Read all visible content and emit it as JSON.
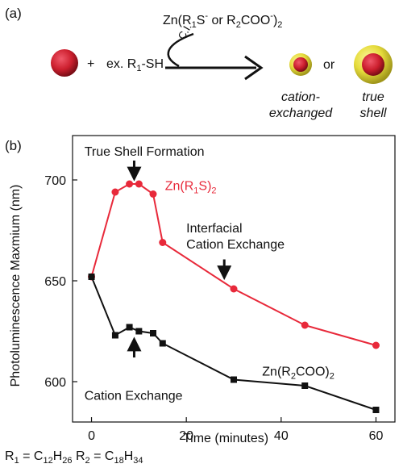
{
  "panel_a": {
    "label": "(a)",
    "plus": "+",
    "thiol": {
      "main": "ex. R",
      "sub": "1",
      "tail": "-SH"
    },
    "reagent": {
      "pre": "Zn(R",
      "sub1": "1",
      "s": "S",
      "sup": "-",
      "or": " or R",
      "sub2": "2",
      "coo": "COO",
      "sup2": "-",
      "close": ")",
      "sub3": "2"
    },
    "ci_label": "C.I.",
    "or_label": "or",
    "product1_label_line1": "cation-",
    "product1_label_line2": "exchanged",
    "product2_label_line1": "true",
    "product2_label_line2": "shell",
    "colors": {
      "core": "#cc1f2e",
      "shell": "#e6dc3c"
    }
  },
  "footnote": {
    "r1": "R",
    "r1_sub": "1",
    "eq1": " = C",
    "c1_sub": "12",
    "h1": "H",
    "h1_sub": "26",
    "r2": " R",
    "r2_sub": "2",
    "eq2": " = C",
    "c2_sub": "18",
    "h2": "H",
    "h2_sub": "34"
  },
  "chart_data": {
    "type": "line",
    "panel_label": "(b)",
    "xlabel": "Time (minutes)",
    "ylabel": "Photoluminescence Maxmium (nm)",
    "xlim": [
      -4,
      64
    ],
    "ylim": [
      580,
      722
    ],
    "xticks": [
      0,
      20,
      40,
      60
    ],
    "yticks": [
      600,
      650,
      700
    ],
    "grid": false,
    "series": [
      {
        "name_parts": {
          "pre": "Zn(R",
          "sub": "1",
          "mid": "S)",
          "sub2": "2"
        },
        "color": "#e8293a",
        "marker": "circle",
        "x": [
          0,
          5,
          8,
          10,
          13,
          15,
          30,
          45,
          60
        ],
        "y": [
          652,
          694,
          698,
          698,
          693,
          669,
          646,
          628,
          618
        ]
      },
      {
        "name_parts": {
          "pre": "Zn(R",
          "sub": "2",
          "mid": "COO)",
          "sub2": "2"
        },
        "color": "#111111",
        "marker": "square",
        "x": [
          0,
          5,
          8,
          10,
          13,
          15,
          30,
          45,
          60
        ],
        "y": [
          652,
          623,
          627,
          625,
          624,
          619,
          601,
          598,
          586
        ]
      }
    ],
    "annotations": [
      {
        "text_lines": [
          "True Shell Formation"
        ],
        "arrow": "down",
        "arrow_x": 9,
        "arrow_y": 700
      },
      {
        "text_lines": [
          "Interfacial",
          "Cation Exchange"
        ],
        "arrow": "down",
        "arrow_x": 28,
        "arrow_y": 651
      },
      {
        "text_lines": [
          "Cation Exchange"
        ],
        "arrow": "up",
        "arrow_x": 9,
        "arrow_y": 624
      }
    ]
  }
}
